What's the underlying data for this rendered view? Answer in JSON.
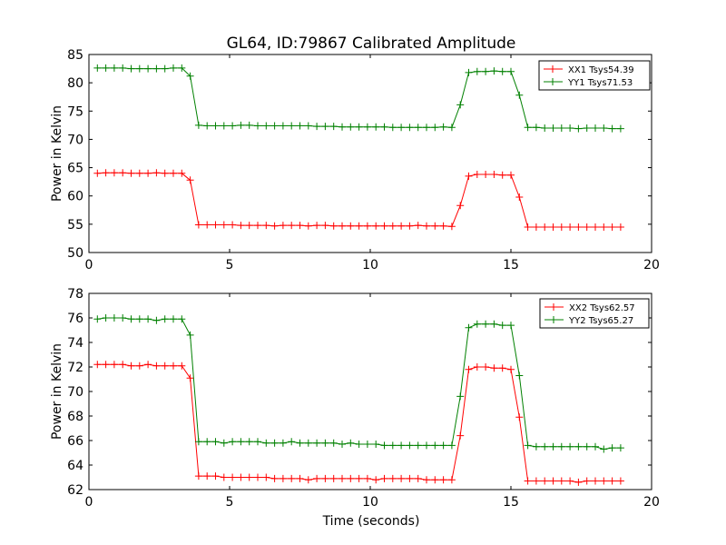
{
  "chart_data": [
    {
      "type": "line",
      "title": "GL64, ID:79867 Calibrated Amplitude",
      "xlabel": "",
      "ylabel": "Power in Kelvin",
      "xlim": [
        0,
        20
      ],
      "ylim": [
        50,
        85
      ],
      "xticks": [
        0,
        5,
        10,
        15,
        20
      ],
      "yticks": [
        50,
        55,
        60,
        65,
        70,
        75,
        80,
        85
      ],
      "grid": false,
      "legend_position": "top-right",
      "x": [
        0.3,
        0.6,
        0.9,
        1.2,
        1.5,
        1.8,
        2.1,
        2.4,
        2.7,
        3.0,
        3.3,
        3.6,
        3.9,
        4.2,
        4.5,
        4.8,
        5.1,
        5.4,
        5.7,
        6.0,
        6.3,
        6.6,
        6.9,
        7.2,
        7.5,
        7.8,
        8.1,
        8.4,
        8.7,
        9.0,
        9.3,
        9.6,
        9.9,
        10.2,
        10.5,
        10.8,
        11.1,
        11.4,
        11.7,
        12.0,
        12.3,
        12.6,
        12.9,
        13.2,
        13.5,
        13.8,
        14.1,
        14.4,
        14.7,
        15.0,
        15.3,
        15.6,
        15.9,
        16.2,
        16.5,
        16.8,
        17.1,
        17.4,
        17.7,
        18.0,
        18.3,
        18.6,
        18.9
      ],
      "series": [
        {
          "name": "XX1 Tsys54.39",
          "color": "#ff0000",
          "values": [
            64.0,
            64.1,
            64.1,
            64.1,
            64.0,
            64.0,
            64.0,
            64.1,
            64.0,
            64.0,
            64.0,
            62.8,
            54.9,
            54.9,
            54.9,
            54.9,
            54.9,
            54.8,
            54.8,
            54.8,
            54.8,
            54.7,
            54.8,
            54.8,
            54.8,
            54.7,
            54.8,
            54.8,
            54.7,
            54.7,
            54.7,
            54.7,
            54.7,
            54.7,
            54.7,
            54.7,
            54.7,
            54.7,
            54.8,
            54.7,
            54.7,
            54.7,
            54.6,
            58.3,
            63.5,
            63.8,
            63.8,
            63.8,
            63.7,
            63.7,
            59.8,
            54.5,
            54.5,
            54.5,
            54.5,
            54.5,
            54.5,
            54.5,
            54.5,
            54.5,
            54.5,
            54.5,
            54.5
          ]
        },
        {
          "name": "YY1 Tsys71.53",
          "color": "#008000",
          "values": [
            82.6,
            82.6,
            82.6,
            82.6,
            82.5,
            82.5,
            82.5,
            82.5,
            82.5,
            82.6,
            82.6,
            81.2,
            72.5,
            72.4,
            72.4,
            72.4,
            72.4,
            72.5,
            72.5,
            72.4,
            72.4,
            72.4,
            72.4,
            72.4,
            72.4,
            72.4,
            72.3,
            72.3,
            72.3,
            72.2,
            72.2,
            72.2,
            72.2,
            72.2,
            72.2,
            72.1,
            72.1,
            72.1,
            72.1,
            72.1,
            72.1,
            72.2,
            72.1,
            76.1,
            81.8,
            82.0,
            82.0,
            82.1,
            82.0,
            82.0,
            77.8,
            72.1,
            72.1,
            72.0,
            72.0,
            72.0,
            72.0,
            71.9,
            72.0,
            72.0,
            72.0,
            71.9,
            71.9
          ]
        }
      ]
    },
    {
      "type": "line",
      "title": "",
      "xlabel": "Time (seconds)",
      "ylabel": "Power in Kelvin",
      "xlim": [
        0,
        20
      ],
      "ylim": [
        62,
        78
      ],
      "xticks": [
        0,
        5,
        10,
        15,
        20
      ],
      "yticks": [
        62,
        64,
        66,
        68,
        70,
        72,
        74,
        76,
        78
      ],
      "grid": false,
      "legend_position": "top-right",
      "x": [
        0.3,
        0.6,
        0.9,
        1.2,
        1.5,
        1.8,
        2.1,
        2.4,
        2.7,
        3.0,
        3.3,
        3.6,
        3.9,
        4.2,
        4.5,
        4.8,
        5.1,
        5.4,
        5.7,
        6.0,
        6.3,
        6.6,
        6.9,
        7.2,
        7.5,
        7.8,
        8.1,
        8.4,
        8.7,
        9.0,
        9.3,
        9.6,
        9.9,
        10.2,
        10.5,
        10.8,
        11.1,
        11.4,
        11.7,
        12.0,
        12.3,
        12.6,
        12.9,
        13.2,
        13.5,
        13.8,
        14.1,
        14.4,
        14.7,
        15.0,
        15.3,
        15.6,
        15.9,
        16.2,
        16.5,
        16.8,
        17.1,
        17.4,
        17.7,
        18.0,
        18.3,
        18.6,
        18.9
      ],
      "series": [
        {
          "name": "XX2 Tsys62.57",
          "color": "#ff0000",
          "values": [
            72.2,
            72.2,
            72.2,
            72.2,
            72.1,
            72.1,
            72.2,
            72.1,
            72.1,
            72.1,
            72.1,
            71.1,
            63.1,
            63.1,
            63.1,
            63.0,
            63.0,
            63.0,
            63.0,
            63.0,
            63.0,
            62.9,
            62.9,
            62.9,
            62.9,
            62.8,
            62.9,
            62.9,
            62.9,
            62.9,
            62.9,
            62.9,
            62.9,
            62.8,
            62.9,
            62.9,
            62.9,
            62.9,
            62.9,
            62.8,
            62.8,
            62.8,
            62.8,
            66.4,
            71.8,
            72.0,
            72.0,
            71.9,
            71.9,
            71.8,
            67.9,
            62.7,
            62.7,
            62.7,
            62.7,
            62.7,
            62.7,
            62.6,
            62.7,
            62.7,
            62.7,
            62.7,
            62.7
          ]
        },
        {
          "name": "YY2 Tsys65.27",
          "color": "#008000",
          "values": [
            75.9,
            76.0,
            76.0,
            76.0,
            75.9,
            75.9,
            75.9,
            75.8,
            75.9,
            75.9,
            75.9,
            74.6,
            65.9,
            65.9,
            65.9,
            65.8,
            65.9,
            65.9,
            65.9,
            65.9,
            65.8,
            65.8,
            65.8,
            65.9,
            65.8,
            65.8,
            65.8,
            65.8,
            65.8,
            65.7,
            65.8,
            65.7,
            65.7,
            65.7,
            65.6,
            65.6,
            65.6,
            65.6,
            65.6,
            65.6,
            65.6,
            65.6,
            65.6,
            69.6,
            75.2,
            75.5,
            75.5,
            75.5,
            75.4,
            75.4,
            71.3,
            65.6,
            65.5,
            65.5,
            65.5,
            65.5,
            65.5,
            65.5,
            65.5,
            65.5,
            65.3,
            65.4,
            65.4
          ]
        }
      ]
    }
  ]
}
